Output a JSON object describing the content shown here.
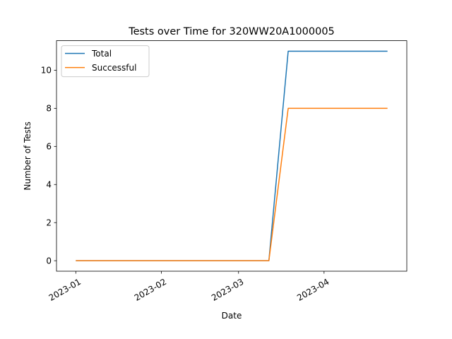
{
  "chart_data": {
    "type": "line",
    "title": "Tests over Time for 320WW20A1000005",
    "xlabel": "Date",
    "ylabel": "Number of Tests",
    "x": [
      "2023-01-01",
      "2023-03-12",
      "2023-03-19",
      "2023-04-24"
    ],
    "series": [
      {
        "name": "Total",
        "color": "#1f77b4",
        "values": [
          0,
          0,
          11,
          11
        ]
      },
      {
        "name": "Successful",
        "color": "#ff7f0e",
        "values": [
          0,
          0,
          8,
          8
        ]
      }
    ],
    "xlim": [
      "2022-12-25",
      "2023-05-01"
    ],
    "ylim": [
      -0.55,
      11.55
    ],
    "x_ticks": [
      {
        "date": "2023-01-01",
        "label": "2023-01"
      },
      {
        "date": "2023-02-01",
        "label": "2023-02"
      },
      {
        "date": "2023-03-01",
        "label": "2023-03"
      },
      {
        "date": "2023-04-01",
        "label": "2023-04"
      }
    ],
    "y_ticks": [
      0,
      2,
      4,
      6,
      8,
      10
    ],
    "legend_position": "upper-left",
    "grid": false
  }
}
